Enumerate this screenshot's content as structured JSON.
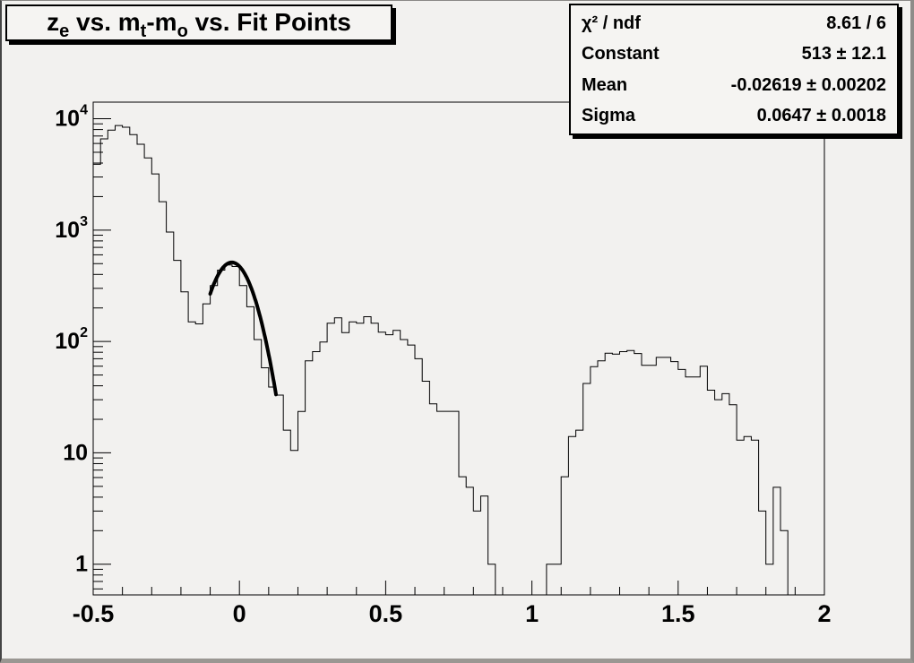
{
  "title": {
    "parts": [
      {
        "text": "z",
        "sub": false
      },
      {
        "text": "e",
        "sub": true
      },
      {
        "text": " vs. m",
        "sub": false
      },
      {
        "text": "t",
        "sub": true
      },
      {
        "text": "-m",
        "sub": false
      },
      {
        "text": "o",
        "sub": true
      },
      {
        "text": " vs. Fit Points",
        "sub": false
      }
    ]
  },
  "stats": {
    "rows": [
      {
        "label": "χ² / ndf",
        "value": "8.61 / 6"
      },
      {
        "label": "Constant",
        "value": "513 ± 12.1"
      },
      {
        "label": "Mean",
        "value": "-0.02619 ± 0.00202"
      },
      {
        "label": "Sigma",
        "value": "0.0647 ± 0.0018"
      }
    ]
  },
  "colors": {
    "canvas_bg": "#f2f1ef",
    "pave_bg": "#f5f4f2",
    "line": "#000000",
    "bevel": "#8e8c89"
  },
  "chart_data": {
    "type": "histogram",
    "title": "z_e vs. m_t-m_o vs. Fit Points",
    "x_axis_range": [
      -0.5,
      2
    ],
    "y_axis_range": [
      0.53,
      14100
    ],
    "y_scale": "log",
    "grid": "off",
    "x_start": -0.5,
    "bin_width": 0.025,
    "n_bins": 100,
    "bin_values": [
      3900,
      6600,
      7900,
      8700,
      8400,
      7200,
      5900,
      4450,
      3200,
      1800,
      960,
      535,
      279,
      150,
      144,
      218,
      318,
      437,
      486,
      471,
      318,
      205,
      104,
      58,
      39,
      33,
      16,
      10.5,
      23.5,
      67,
      81,
      99,
      146,
      163,
      120,
      150,
      146,
      167,
      146,
      121,
      115,
      126,
      104,
      93,
      70,
      44,
      27.5,
      23.6,
      23.6,
      23.6,
      6.1,
      4.9,
      3.0,
      4.1,
      1.0,
      0,
      0,
      0,
      0,
      0,
      0,
      0,
      1.0,
      1.0,
      6.1,
      14,
      16,
      42,
      59.5,
      67,
      78.5,
      77,
      81,
      83,
      78,
      61,
      61,
      72,
      72,
      66,
      56,
      48,
      48,
      60,
      36.5,
      30,
      34,
      27,
      13,
      14,
      13,
      3.0,
      1.0,
      4.9,
      2.0,
      0,
      0,
      0,
      0,
      0
    ],
    "x_major_ticks": [
      {
        "v": -0.5,
        "label": "-0.5"
      },
      {
        "v": 0,
        "label": "0"
      },
      {
        "v": 0.5,
        "label": "0.5"
      },
      {
        "v": 1,
        "label": "1"
      },
      {
        "v": 1.5,
        "label": "1.5"
      },
      {
        "v": 2,
        "label": "2"
      }
    ],
    "x_minor_tick_step": 0.1,
    "y_major_ticks": [
      {
        "v": 1,
        "base": "1",
        "exp": ""
      },
      {
        "v": 10,
        "base": "10",
        "exp": ""
      },
      {
        "v": 100,
        "base": "10",
        "exp": "2"
      },
      {
        "v": 1000,
        "base": "10",
        "exp": "3"
      },
      {
        "v": 10000,
        "base": "10",
        "exp": "4"
      }
    ],
    "fit_curve": {
      "shape": "gaussian",
      "constant": 513,
      "mean": -0.02619,
      "sigma": 0.0647,
      "x_range": [
        -0.1,
        0.125
      ]
    },
    "stats": {
      "chi2_ndf": "8.61 / 6",
      "constant": 513,
      "constant_err": 12.1,
      "mean": -0.02619,
      "mean_err": 0.00202,
      "sigma": 0.0647,
      "sigma_err": 0.0018
    }
  }
}
